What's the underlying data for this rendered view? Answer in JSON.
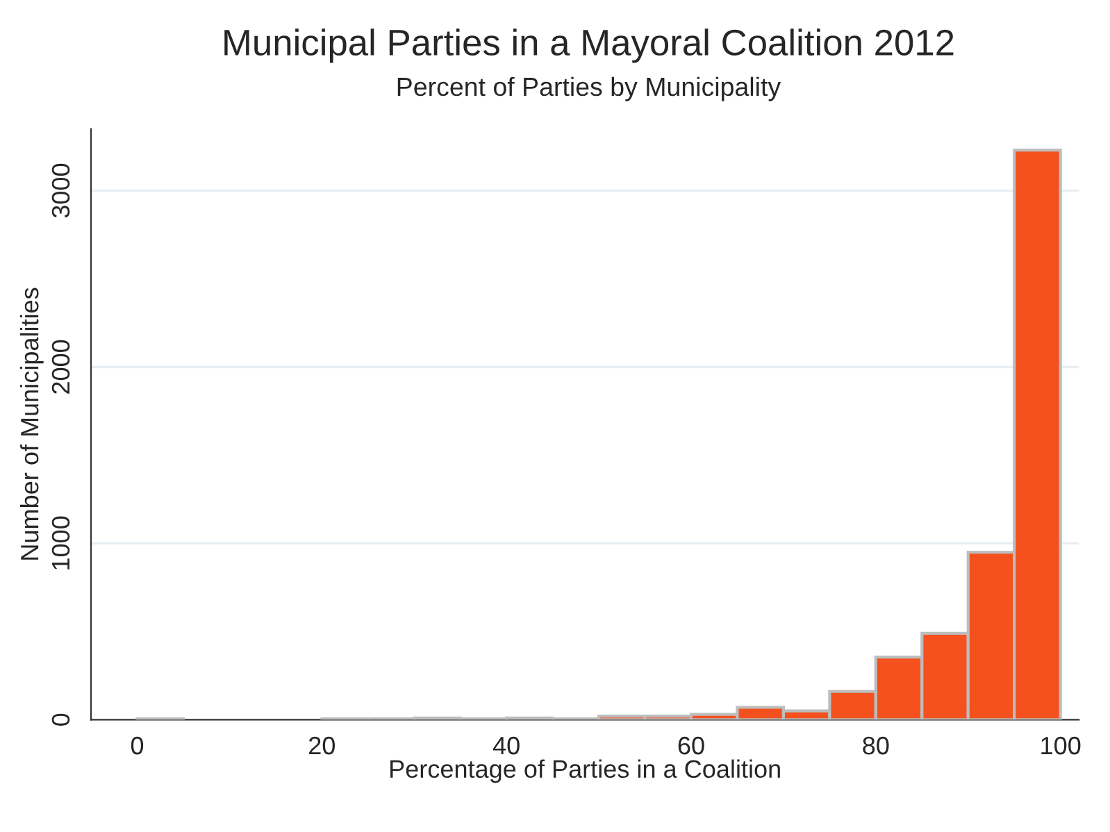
{
  "chart_data": {
    "type": "histogram",
    "title": "Municipal Parties in a Mayoral Coalition 2012",
    "subtitle": "Percent of Parties by Municipality",
    "xlabel": "Percentage of Parties in a Coalition",
    "ylabel": "Number of Municipalities",
    "bins": [
      0,
      5,
      10,
      15,
      20,
      25,
      30,
      35,
      40,
      45,
      50,
      55,
      60,
      65,
      70,
      75,
      80,
      85,
      90,
      95,
      100
    ],
    "values": [
      5,
      0,
      0,
      0,
      5,
      5,
      10,
      5,
      10,
      5,
      20,
      20,
      30,
      70,
      50,
      160,
      355,
      490,
      950,
      3230
    ],
    "color": "#f4511e",
    "xlim": [
      -5,
      102
    ],
    "xticks": [
      0,
      20,
      40,
      60,
      80,
      100
    ],
    "ylim": [
      0,
      3350
    ],
    "yticks": [
      0,
      1000,
      2000,
      3000
    ],
    "grid": "y"
  }
}
